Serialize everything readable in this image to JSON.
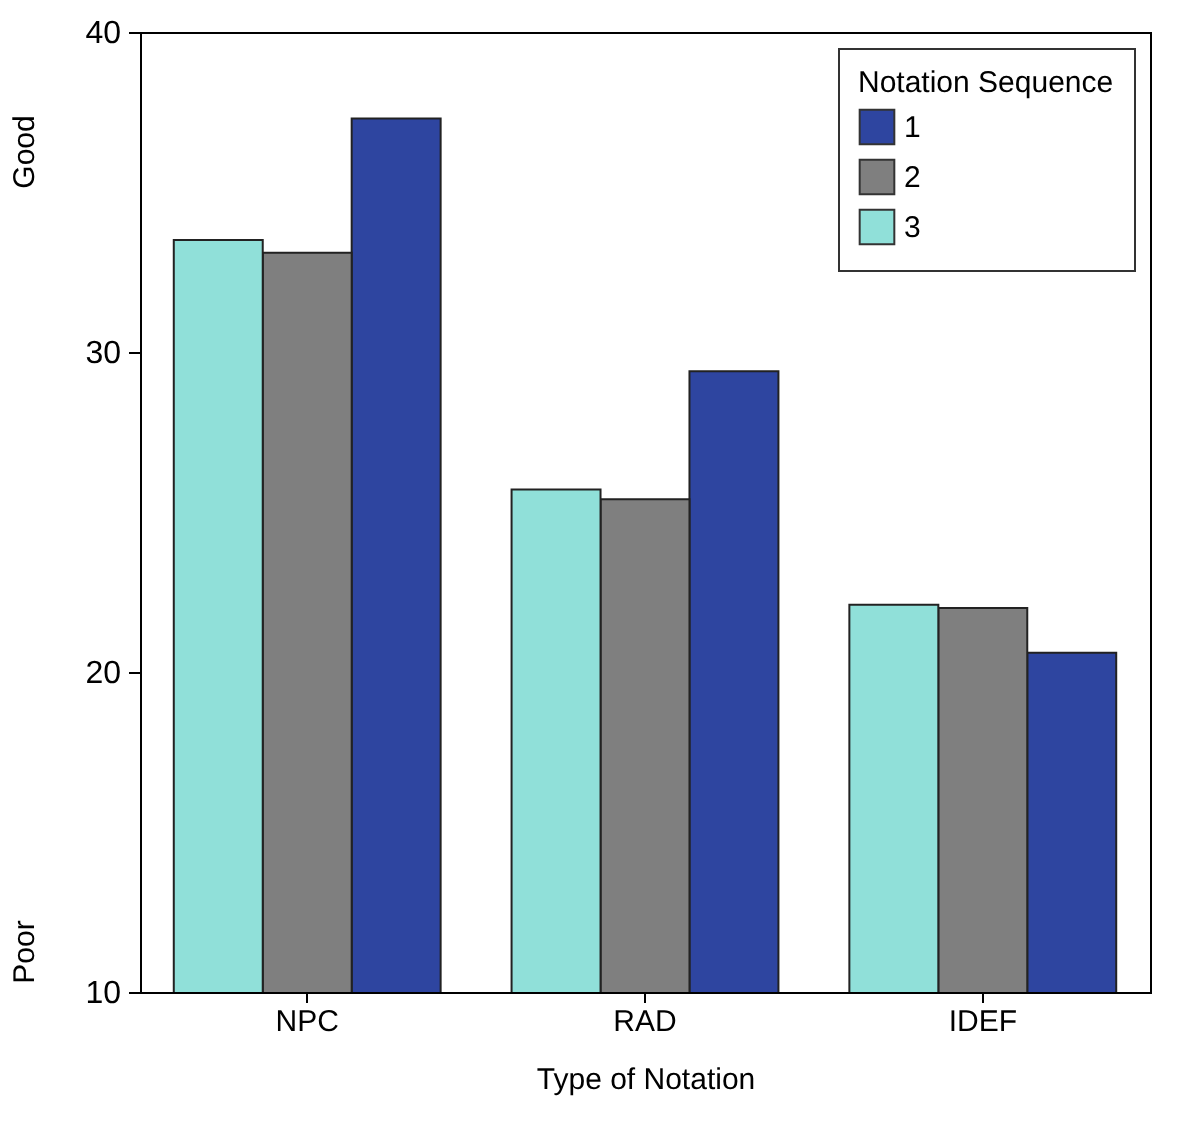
{
  "chart_data": {
    "type": "bar",
    "xlabel": "Type of Notation",
    "legend_title": "Notation Sequence",
    "legend": "top right",
    "grid": false,
    "categories": [
      "NPC",
      "RAD",
      "IDEF"
    ],
    "series": [
      {
        "name": "1",
        "color": "#2e45a0",
        "values": [
          37.3,
          29.4,
          20.6
        ]
      },
      {
        "name": "2",
        "color": "#7f7f7f",
        "values": [
          33.1,
          25.4,
          22.0
        ]
      },
      {
        "name": "3",
        "color": "#90e0d9",
        "values": [
          33.5,
          25.7,
          22.1
        ]
      }
    ],
    "ylim": [
      10,
      40
    ],
    "yticks": [
      10,
      20,
      30,
      40
    ],
    "annotations": [
      "Good",
      "Poor"
    ]
  }
}
